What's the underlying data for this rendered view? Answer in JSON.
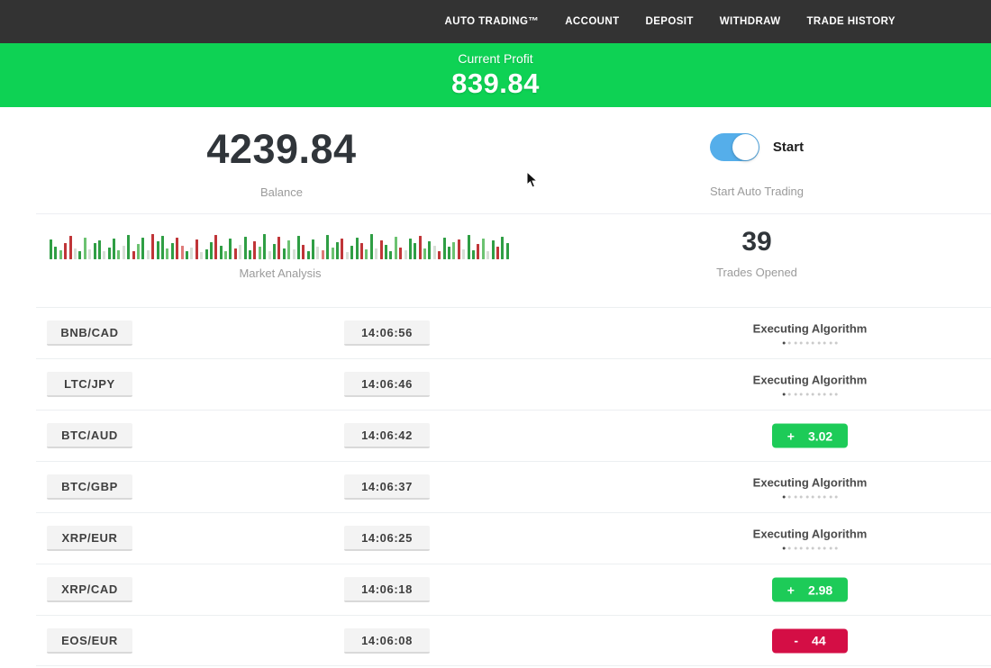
{
  "nav": {
    "items": [
      {
        "label": "AUTO TRADING™"
      },
      {
        "label": "ACCOUNT"
      },
      {
        "label": "DEPOSIT"
      },
      {
        "label": "WITHDRAW"
      },
      {
        "label": "TRADE HISTORY"
      }
    ]
  },
  "profit_banner": {
    "label": "Current Profit",
    "value": "839.84"
  },
  "account": {
    "balance": "4239.84",
    "balance_label": "Balance",
    "toggle_label": "Start",
    "toggle_caption": "Start Auto Trading",
    "toggle_on": true
  },
  "market": {
    "label": "Market Analysis",
    "trades_opened": "39",
    "trades_opened_label": "Trades Opened",
    "bars": [
      [
        22,
        "g"
      ],
      [
        14,
        "g"
      ],
      [
        10,
        "G"
      ],
      [
        18,
        "r"
      ],
      [
        26,
        "r"
      ],
      [
        12,
        "n"
      ],
      [
        9,
        "g"
      ],
      [
        24,
        "G"
      ],
      [
        11,
        "n"
      ],
      [
        18,
        "g"
      ],
      [
        21,
        "g"
      ],
      [
        9,
        "n"
      ],
      [
        13,
        "g"
      ],
      [
        23,
        "g"
      ],
      [
        10,
        "G"
      ],
      [
        15,
        "n"
      ],
      [
        27,
        "g"
      ],
      [
        9,
        "r"
      ],
      [
        17,
        "G"
      ],
      [
        24,
        "g"
      ],
      [
        10,
        "n"
      ],
      [
        28,
        "r"
      ],
      [
        20,
        "g"
      ],
      [
        26,
        "g"
      ],
      [
        12,
        "G"
      ],
      [
        18,
        "g"
      ],
      [
        24,
        "r"
      ],
      [
        15,
        "R"
      ],
      [
        9,
        "g"
      ],
      [
        13,
        "n"
      ],
      [
        22,
        "r"
      ],
      [
        8,
        "n"
      ],
      [
        11,
        "g"
      ],
      [
        19,
        "g"
      ],
      [
        27,
        "r"
      ],
      [
        15,
        "g"
      ],
      [
        9,
        "G"
      ],
      [
        23,
        "g"
      ],
      [
        12,
        "r"
      ],
      [
        16,
        "n"
      ],
      [
        25,
        "g"
      ],
      [
        10,
        "g"
      ],
      [
        20,
        "r"
      ],
      [
        14,
        "G"
      ],
      [
        28,
        "g"
      ],
      [
        9,
        "n"
      ],
      [
        17,
        "g"
      ],
      [
        25,
        "r"
      ],
      [
        12,
        "g"
      ],
      [
        21,
        "G"
      ],
      [
        11,
        "n"
      ],
      [
        26,
        "g"
      ],
      [
        16,
        "r"
      ],
      [
        9,
        "g"
      ],
      [
        22,
        "g"
      ],
      [
        14,
        "n"
      ],
      [
        10,
        "R"
      ],
      [
        27,
        "g"
      ],
      [
        13,
        "G"
      ],
      [
        19,
        "g"
      ],
      [
        23,
        "r"
      ],
      [
        8,
        "n"
      ],
      [
        15,
        "g"
      ],
      [
        24,
        "g"
      ],
      [
        18,
        "r"
      ],
      [
        11,
        "G"
      ],
      [
        28,
        "g"
      ],
      [
        12,
        "n"
      ],
      [
        21,
        "r"
      ],
      [
        16,
        "g"
      ],
      [
        9,
        "g"
      ],
      [
        25,
        "G"
      ],
      [
        13,
        "r"
      ],
      [
        10,
        "n"
      ],
      [
        23,
        "g"
      ],
      [
        18,
        "g"
      ],
      [
        26,
        "r"
      ],
      [
        12,
        "G"
      ],
      [
        20,
        "g"
      ],
      [
        15,
        "n"
      ],
      [
        9,
        "r"
      ],
      [
        24,
        "g"
      ],
      [
        14,
        "g"
      ],
      [
        19,
        "G"
      ],
      [
        22,
        "r"
      ],
      [
        11,
        "n"
      ],
      [
        27,
        "g"
      ],
      [
        10,
        "g"
      ],
      [
        17,
        "r"
      ],
      [
        23,
        "G"
      ],
      [
        9,
        "n"
      ],
      [
        21,
        "g"
      ],
      [
        14,
        "r"
      ],
      [
        25,
        "g"
      ],
      [
        18,
        "g"
      ]
    ]
  },
  "ui": {
    "executing_dots_total": 10,
    "executing_dots_active": 1
  },
  "trades": [
    {
      "pair": "BNB/CAD",
      "time": "14:06:56",
      "status": "executing",
      "status_label": "Executing Algorithm"
    },
    {
      "pair": "LTC/JPY",
      "time": "14:06:46",
      "status": "executing",
      "status_label": "Executing Algorithm"
    },
    {
      "pair": "BTC/AUD",
      "time": "14:06:42",
      "status": "profit",
      "result_sign": "+",
      "result_value": "3.02"
    },
    {
      "pair": "BTC/GBP",
      "time": "14:06:37",
      "status": "executing",
      "status_label": "Executing Algorithm"
    },
    {
      "pair": "XRP/EUR",
      "time": "14:06:25",
      "status": "executing",
      "status_label": "Executing Algorithm"
    },
    {
      "pair": "XRP/CAD",
      "time": "14:06:18",
      "status": "profit",
      "result_sign": "+",
      "result_value": "2.98"
    },
    {
      "pair": "EOS/EUR",
      "time": "14:06:08",
      "status": "loss",
      "result_sign": "-",
      "result_value": "44"
    }
  ],
  "colors": {
    "nav_bg": "#333333",
    "banner_green": "#0ed254",
    "badge_green": "#1dcb58",
    "badge_red": "#d40e45",
    "toggle_blue": "#55aeea"
  }
}
